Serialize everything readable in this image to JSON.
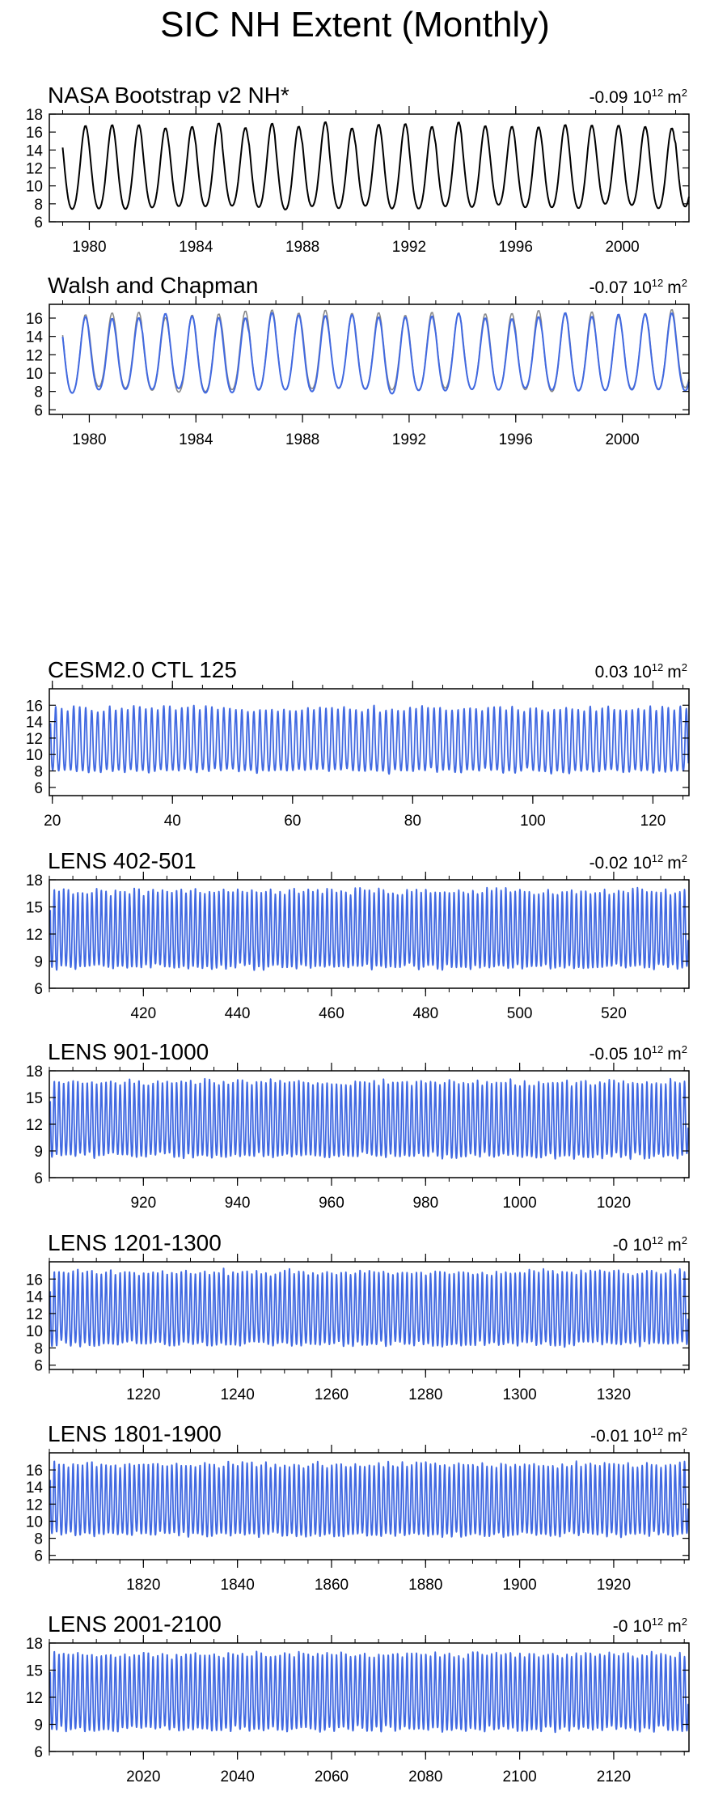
{
  "title": "SIC NH Extent (Monthly)",
  "colors": {
    "primary_line": "#4169e1",
    "obs_black": "#000000",
    "obs_gray": "#888888"
  },
  "chart_data": [
    {
      "type": "line",
      "title": "NASA Bootstrap v2 NH*",
      "trend_value": "-0.09",
      "trend_unit_base": "10",
      "trend_unit_exp": "12",
      "trend_unit_tail": "m",
      "trend_unit_sq": "2",
      "xlim": [
        1978.5,
        2002.5
      ],
      "ylim": [
        6,
        18
      ],
      "xticks": [
        1980,
        1984,
        1988,
        1992,
        1996,
        2000
      ],
      "yticks": [
        6,
        8,
        10,
        12,
        14,
        16,
        18
      ],
      "series": [
        {
          "color": "#000000",
          "x_start": 1979.0,
          "x_end": 2002.5,
          "min": 7.0,
          "max": 16.3
        }
      ]
    },
    {
      "type": "line",
      "title": "Walsh and Chapman",
      "trend_value": "-0.07",
      "trend_unit_base": "10",
      "trend_unit_exp": "12",
      "trend_unit_tail": "m",
      "trend_unit_sq": "2",
      "xlim": [
        1978.5,
        2002.5
      ],
      "ylim": [
        5.5,
        17.5
      ],
      "xticks": [
        1980,
        1984,
        1988,
        1992,
        1996,
        2000
      ],
      "yticks": [
        6,
        8,
        10,
        12,
        14,
        16
      ],
      "series": [
        {
          "color": "#888888",
          "x_start": 1979.0,
          "x_end": 2002.5,
          "min": 7.6,
          "max": 16.1
        },
        {
          "color": "#4169e1",
          "x_start": 1979.0,
          "x_end": 2002.5,
          "min": 7.5,
          "max": 15.8
        }
      ]
    },
    {
      "type": "line",
      "title": "CESM2.0 CTL 125",
      "trend_value": "0.03",
      "trend_unit_base": "10",
      "trend_unit_exp": "12",
      "trend_unit_tail": "m",
      "trend_unit_sq": "2",
      "xlim": [
        19.5,
        126
      ],
      "ylim": [
        5,
        18
      ],
      "xticks": [
        20,
        40,
        60,
        80,
        100,
        120
      ],
      "yticks": [
        6,
        8,
        10,
        12,
        14,
        16
      ],
      "series": [
        {
          "color": "#4169e1",
          "x_start": 19.7,
          "x_end": 125.9,
          "min": 7.5,
          "max": 15.2
        }
      ]
    },
    {
      "type": "line",
      "title": "LENS 402-501",
      "trend_value": "-0.02",
      "trend_unit_base": "10",
      "trend_unit_exp": "12",
      "trend_unit_tail": "m",
      "trend_unit_sq": "2",
      "xlim": [
        400,
        536
      ],
      "ylim": [
        6,
        18
      ],
      "xticks": [
        420,
        440,
        460,
        480,
        500,
        520
      ],
      "yticks": [
        6,
        9,
        12,
        15,
        18
      ],
      "series": [
        {
          "color": "#4169e1",
          "x_start": 400.2,
          "x_end": 535.8,
          "min": 7.8,
          "max": 16.3
        }
      ]
    },
    {
      "type": "line",
      "title": "LENS 901-1000",
      "trend_value": "-0.05",
      "trend_unit_base": "10",
      "trend_unit_exp": "12",
      "trend_unit_tail": "m",
      "trend_unit_sq": "2",
      "xlim": [
        900,
        1036
      ],
      "ylim": [
        6,
        18
      ],
      "xticks": [
        920,
        940,
        960,
        980,
        1000,
        1020
      ],
      "yticks": [
        6,
        9,
        12,
        15,
        18
      ],
      "series": [
        {
          "color": "#4169e1",
          "x_start": 900.2,
          "x_end": 1035.8,
          "min": 7.9,
          "max": 16.3
        }
      ]
    },
    {
      "type": "line",
      "title": "LENS 1201-1300",
      "trend_value": "-0",
      "trend_unit_base": "10",
      "trend_unit_exp": "12",
      "trend_unit_tail": "m",
      "trend_unit_sq": "2",
      "xlim": [
        1200,
        1336
      ],
      "ylim": [
        5.5,
        18
      ],
      "xticks": [
        1220,
        1240,
        1260,
        1280,
        1300,
        1320
      ],
      "yticks": [
        6,
        8,
        10,
        12,
        14,
        16
      ],
      "series": [
        {
          "color": "#4169e1",
          "x_start": 1200.2,
          "x_end": 1335.8,
          "min": 7.9,
          "max": 16.4
        }
      ]
    },
    {
      "type": "line",
      "title": "LENS 1801-1900",
      "trend_value": "-0.01",
      "trend_unit_base": "10",
      "trend_unit_exp": "12",
      "trend_unit_tail": "m",
      "trend_unit_sq": "2",
      "xlim": [
        1800,
        1936
      ],
      "ylim": [
        5.5,
        18
      ],
      "xticks": [
        1820,
        1840,
        1860,
        1880,
        1900,
        1920
      ],
      "yticks": [
        6,
        8,
        10,
        12,
        14,
        16
      ],
      "series": [
        {
          "color": "#4169e1",
          "x_start": 1800.2,
          "x_end": 1935.8,
          "min": 7.9,
          "max": 16.2
        }
      ]
    },
    {
      "type": "line",
      "title": "LENS 2001-2100",
      "trend_value": "-0",
      "trend_unit_base": "10",
      "trend_unit_exp": "12",
      "trend_unit_tail": "m",
      "trend_unit_sq": "2",
      "xlim": [
        2000,
        2136
      ],
      "ylim": [
        6,
        18
      ],
      "xticks": [
        2020,
        2040,
        2060,
        2080,
        2100,
        2120
      ],
      "yticks": [
        6,
        9,
        12,
        15,
        18
      ],
      "series": [
        {
          "color": "#4169e1",
          "x_start": 2000.2,
          "x_end": 2135.8,
          "min": 7.9,
          "max": 16.3
        }
      ]
    }
  ]
}
